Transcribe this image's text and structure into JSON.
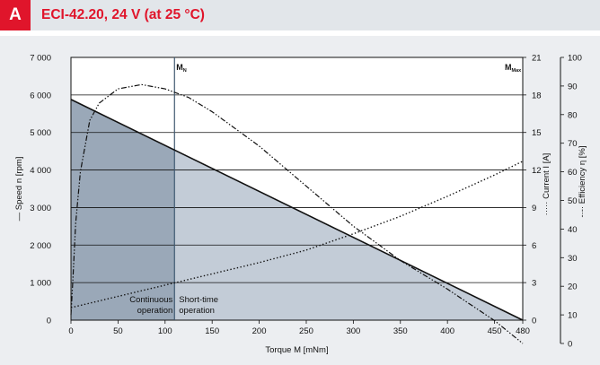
{
  "header": {
    "badge": "A",
    "title": "ECI-42.20, 24 V (at 25 °C)"
  },
  "chart_data": {
    "type": "line",
    "xlabel": "Torque M [mNm]",
    "x_ticks": [
      0,
      50,
      100,
      150,
      200,
      250,
      300,
      350,
      400,
      450,
      480
    ],
    "xlim": [
      0,
      480
    ],
    "y_left": {
      "label": "Speed n [rpm]",
      "label_marker": "—",
      "ylim": [
        0,
        7000
      ],
      "tick_labels": [
        "0",
        "1 000",
        "2 000",
        "3 000",
        "4 000",
        "5 000",
        "6 000",
        "7 000"
      ]
    },
    "y_current": {
      "label": "Current I [A]",
      "label_marker": "·····",
      "ylim": [
        0,
        21
      ],
      "ticks": [
        0,
        3,
        6,
        9,
        12,
        15,
        18,
        21
      ]
    },
    "y_efficiency": {
      "label": "Efficiency η [%]",
      "label_marker": "-·-·",
      "ylim": [
        0,
        100
      ],
      "ticks": [
        0,
        10,
        20,
        30,
        40,
        50,
        60,
        70,
        80,
        90,
        100
      ]
    },
    "grid": "horizontal",
    "markers": [
      {
        "label": "M",
        "sub": "N",
        "x": 110
      },
      {
        "label": "M",
        "sub": "Max",
        "x": 480
      }
    ],
    "regions": [
      {
        "name": "Continuous\noperation",
        "x_range": [
          0,
          110
        ],
        "color": "#9aa8b8"
      },
      {
        "name": "Short-time\noperation",
        "x_range": [
          110,
          480
        ],
        "color": "#c3ccd7"
      }
    ],
    "series": [
      {
        "style": "solid",
        "axis": "speed",
        "x": [
          0,
          480
        ],
        "y": [
          5880,
          0
        ]
      },
      {
        "style": "dotted",
        "axis": "current",
        "x": [
          0,
          50,
          100,
          150,
          200,
          250,
          300,
          350,
          400,
          450,
          480
        ],
        "y": [
          1.0,
          1.9,
          2.8,
          3.7,
          4.6,
          5.6,
          6.9,
          8.3,
          9.9,
          11.6,
          12.7
        ]
      },
      {
        "style": "dash-dot",
        "axis": "efficiency",
        "x": [
          0,
          2,
          5,
          10,
          20,
          30,
          50,
          75,
          100,
          125,
          150,
          200,
          250,
          300,
          350,
          400,
          450,
          480
        ],
        "y": [
          10,
          22,
          42,
          60,
          78,
          84,
          89,
          90.5,
          89,
          86,
          81,
          69,
          55,
          41,
          29,
          19,
          8,
          0
        ]
      }
    ]
  }
}
